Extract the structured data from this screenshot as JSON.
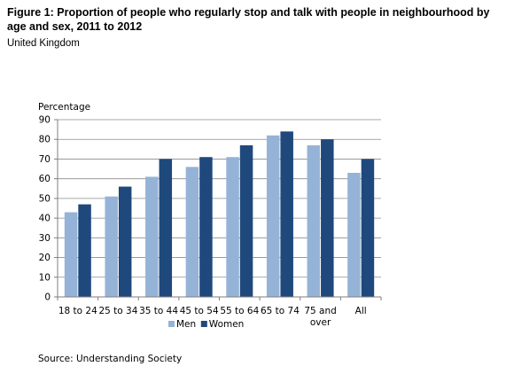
{
  "figure": {
    "title": "Figure 1: Proportion of people who regularly stop and talk with people in neighbourhood by age and sex, 2011 to 2012",
    "subtitle": "United Kingdom",
    "source": "Source: Understanding Society"
  },
  "chart_data": {
    "type": "bar",
    "title": "",
    "ylabel": "Percentage",
    "xlabel": "",
    "ylim": [
      0,
      90
    ],
    "yticks": [
      0,
      10,
      20,
      30,
      40,
      50,
      60,
      70,
      80,
      90
    ],
    "grid": true,
    "legend_position": "bottom",
    "categories": [
      "18 to 24",
      "25 to 34",
      "35 to 44",
      "45 to 54",
      "55 to 64",
      "65 to 74",
      "75 and over",
      "All"
    ],
    "series": [
      {
        "name": "Men",
        "color": "#95B3D7",
        "values": [
          43,
          51,
          61,
          66,
          71,
          82,
          77,
          63
        ]
      },
      {
        "name": "Women",
        "color": "#1F497D",
        "values": [
          47,
          56,
          70,
          71,
          77,
          84,
          80,
          70
        ]
      }
    ]
  }
}
